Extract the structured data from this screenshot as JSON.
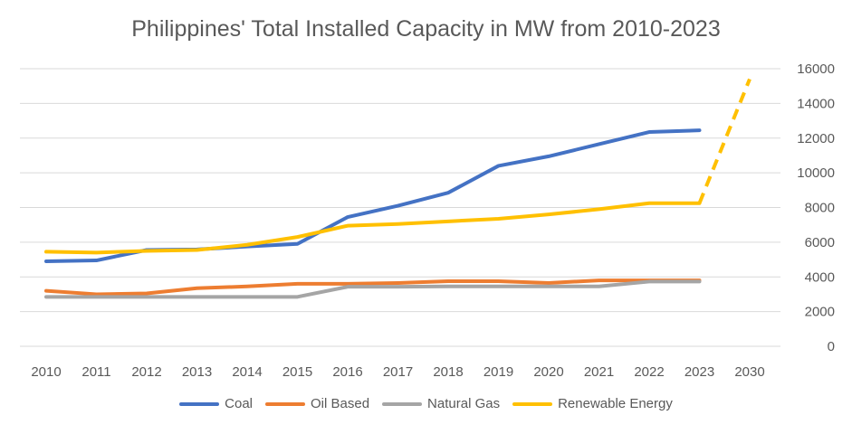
{
  "chart_data": {
    "type": "line",
    "title": "Philippines' Total Installed Capacity in MW from 2010-2023",
    "xlabel": "",
    "ylabel": "",
    "categories": [
      "2010",
      "2011",
      "2012",
      "2013",
      "2014",
      "2015",
      "2016",
      "2017",
      "2018",
      "2019",
      "2020",
      "2021",
      "2022",
      "2023",
      "2030"
    ],
    "ylim": [
      0,
      16000
    ],
    "yticks": [
      0,
      2000,
      4000,
      6000,
      8000,
      10000,
      12000,
      14000,
      16000
    ],
    "y_axis_side": "right",
    "grid": true,
    "legend_position": "bottom",
    "series": [
      {
        "name": "Coal",
        "color": "#4472C4",
        "values": [
          4900,
          4950,
          5550,
          5580,
          5750,
          5900,
          7450,
          8100,
          8850,
          10400,
          10950,
          11650,
          12350,
          12450,
          null
        ]
      },
      {
        "name": "Oil Based",
        "color": "#ED7D31",
        "values": [
          3200,
          3000,
          3050,
          3350,
          3450,
          3600,
          3600,
          3650,
          3750,
          3750,
          3650,
          3800,
          3800,
          3800,
          null
        ]
      },
      {
        "name": "Natural Gas",
        "color": "#A5A5A5",
        "values": [
          2850,
          2850,
          2850,
          2850,
          2850,
          2850,
          3430,
          3430,
          3450,
          3450,
          3450,
          3450,
          3730,
          3730,
          null
        ]
      },
      {
        "name": "Renewable Energy",
        "color": "#FFC000",
        "values": [
          5450,
          5400,
          5500,
          5550,
          5850,
          6300,
          6950,
          7050,
          7200,
          7350,
          7600,
          7900,
          8250,
          8250,
          15400
        ],
        "dashed_from_index": 13
      }
    ]
  }
}
